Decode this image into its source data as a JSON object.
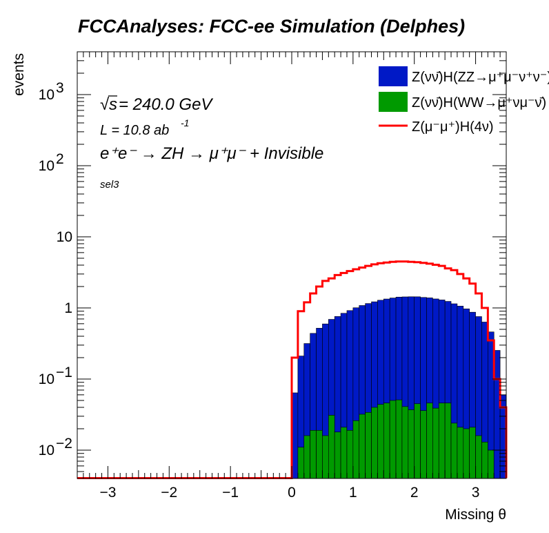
{
  "chart_data": {
    "type": "bar",
    "title": "FCCAnalyses: FCC-ee Simulation (Delphes)",
    "xlabel": "Missing θ",
    "ylabel": "events",
    "xlim": [
      -3.5,
      3.5
    ],
    "ylim": [
      0.004,
      4000
    ],
    "y_scale": "log",
    "x_ticks": [
      "−3",
      "−2",
      "−1",
      "0",
      "1",
      "2",
      "3"
    ],
    "y_ticks": [
      {
        "base": "10",
        "exp": "−2",
        "value": 0.01
      },
      {
        "base": "10",
        "exp": "−1",
        "value": 0.1
      },
      {
        "base": "1",
        "exp": "",
        "value": 1
      },
      {
        "base": "10",
        "exp": "",
        "value": 10
      },
      {
        "base": "10",
        "exp": "2",
        "value": 100
      },
      {
        "base": "10",
        "exp": "3",
        "value": 1000
      }
    ],
    "bin_low": 0.0,
    "bin_width": 0.1,
    "annotations": {
      "energy_prefix": "√",
      "energy_var": "s",
      "energy_value": " = 240.0 GeV",
      "lumi": "L = 10.8 ab",
      "lumi_exp": "-1",
      "process": "e⁺e⁻ → ZH → μ⁺μ⁻ + Invisible",
      "selection": "sel3"
    },
    "legend_position": "top-right",
    "series": [
      {
        "name": "Z(νν̄)H(ZZ→μ⁺μ⁻ν⁺ν⁻)",
        "style": "stacked-fill",
        "color": "#0019c6",
        "values": [
          0.06,
          0.2,
          0.3,
          0.42,
          0.5,
          0.58,
          0.66,
          0.74,
          0.82,
          0.9,
          0.98,
          1.05,
          1.12,
          1.18,
          1.24,
          1.29,
          1.33,
          1.37,
          1.39,
          1.4,
          1.39,
          1.37,
          1.34,
          1.3,
          1.25,
          1.19,
          1.12,
          1.04,
          0.95,
          0.85,
          0.74,
          0.62,
          0.45,
          0.25,
          0.06
        ]
      },
      {
        "name": "Z(νν̄)H(WW→μ⁺νμ⁻ν̄)",
        "style": "stacked-fill",
        "color": "#009a00",
        "values": [
          0.004,
          0.011,
          0.016,
          0.019,
          0.019,
          0.016,
          0.031,
          0.018,
          0.021,
          0.019,
          0.026,
          0.032,
          0.034,
          0.04,
          0.044,
          0.046,
          0.05,
          0.051,
          0.041,
          0.037,
          0.045,
          0.036,
          0.046,
          0.039,
          0.046,
          0.046,
          0.024,
          0.021,
          0.02,
          0.021,
          0.016,
          0.013,
          0.01,
          0.003,
          0.0
        ]
      },
      {
        "name": "Z(μ⁻μ⁺)H(4ν)",
        "style": "step-line",
        "color": "#ff0000",
        "values": [
          0.2,
          0.9,
          1.2,
          1.6,
          2.0,
          2.4,
          2.6,
          2.9,
          3.1,
          3.3,
          3.5,
          3.7,
          3.9,
          4.1,
          4.25,
          4.35,
          4.45,
          4.5,
          4.5,
          4.45,
          4.4,
          4.3,
          4.2,
          4.05,
          3.9,
          3.6,
          3.4,
          3.0,
          2.6,
          2.2,
          1.6,
          1.0,
          0.35,
          0.1,
          0.04
        ]
      }
    ]
  }
}
